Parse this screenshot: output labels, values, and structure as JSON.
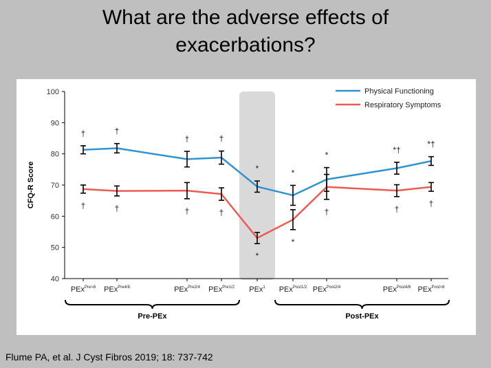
{
  "slide": {
    "title": "What are the adverse effects of exacerbations?",
    "citation": "Flume PA, et al. J Cyst Fibros 2019; 18: 737-742"
  },
  "colors": {
    "background": "#bfbfbf",
    "physical_functioning": "#2e93d1",
    "respiratory_symptoms": "#ec5b52",
    "pex_band": "#d9d9d9"
  },
  "chart_data": {
    "type": "line",
    "title": "",
    "ylabel": "CFQ-R Score",
    "xlabel": "",
    "ylim": [
      40,
      100
    ],
    "yticks": [
      40,
      50,
      60,
      70,
      80,
      90,
      100
    ],
    "grid": false,
    "legend_position": "top-right",
    "highlighted_category": "PEx¹",
    "categories": [
      {
        "base": "PEx",
        "sup": "Pre>8"
      },
      {
        "base": "PEx",
        "sup": "Pre4/8"
      },
      {
        "base": "PEx",
        "sup": "Pre2/4"
      },
      {
        "base": "PEx",
        "sup": "Pre1/2"
      },
      {
        "base": "PEx",
        "sup": "1"
      },
      {
        "base": "PEx",
        "sup": "Post1/2"
      },
      {
        "base": "PEx",
        "sup": "Post2/4"
      },
      {
        "base": "PEx",
        "sup": "Post4/8"
      },
      {
        "base": "PEx",
        "sup": "Post>8"
      }
    ],
    "series": [
      {
        "name": "Physical Functioning",
        "color": "#2e93d1",
        "values": [
          81.3,
          81.8,
          78.3,
          78.8,
          69.5,
          66.7,
          71.8,
          75.4,
          77.7
        ],
        "error": [
          1.3,
          1.5,
          2.5,
          2.1,
          1.8,
          3.2,
          3.8,
          1.9,
          1.4
        ],
        "annotations": [
          "†",
          "†",
          "†",
          "†",
          "*",
          "*",
          "*",
          "*†",
          "*†"
        ]
      },
      {
        "name": "Respiratory Symptoms",
        "color": "#ec5b52",
        "values": [
          68.7,
          68.1,
          68.2,
          67.1,
          53.0,
          58.9,
          69.4,
          68.2,
          69.4
        ],
        "error": [
          1.3,
          1.6,
          2.6,
          2.0,
          1.8,
          3.2,
          4.0,
          1.9,
          1.4
        ],
        "annotations": [
          "†",
          "†",
          "†",
          "†",
          "*",
          "*",
          "†",
          "†",
          "†"
        ]
      }
    ],
    "groups": [
      {
        "label": "Pre-PEx",
        "from": 0,
        "to": 3
      },
      {
        "label": "Post-PEx",
        "from": 5,
        "to": 8
      }
    ]
  }
}
